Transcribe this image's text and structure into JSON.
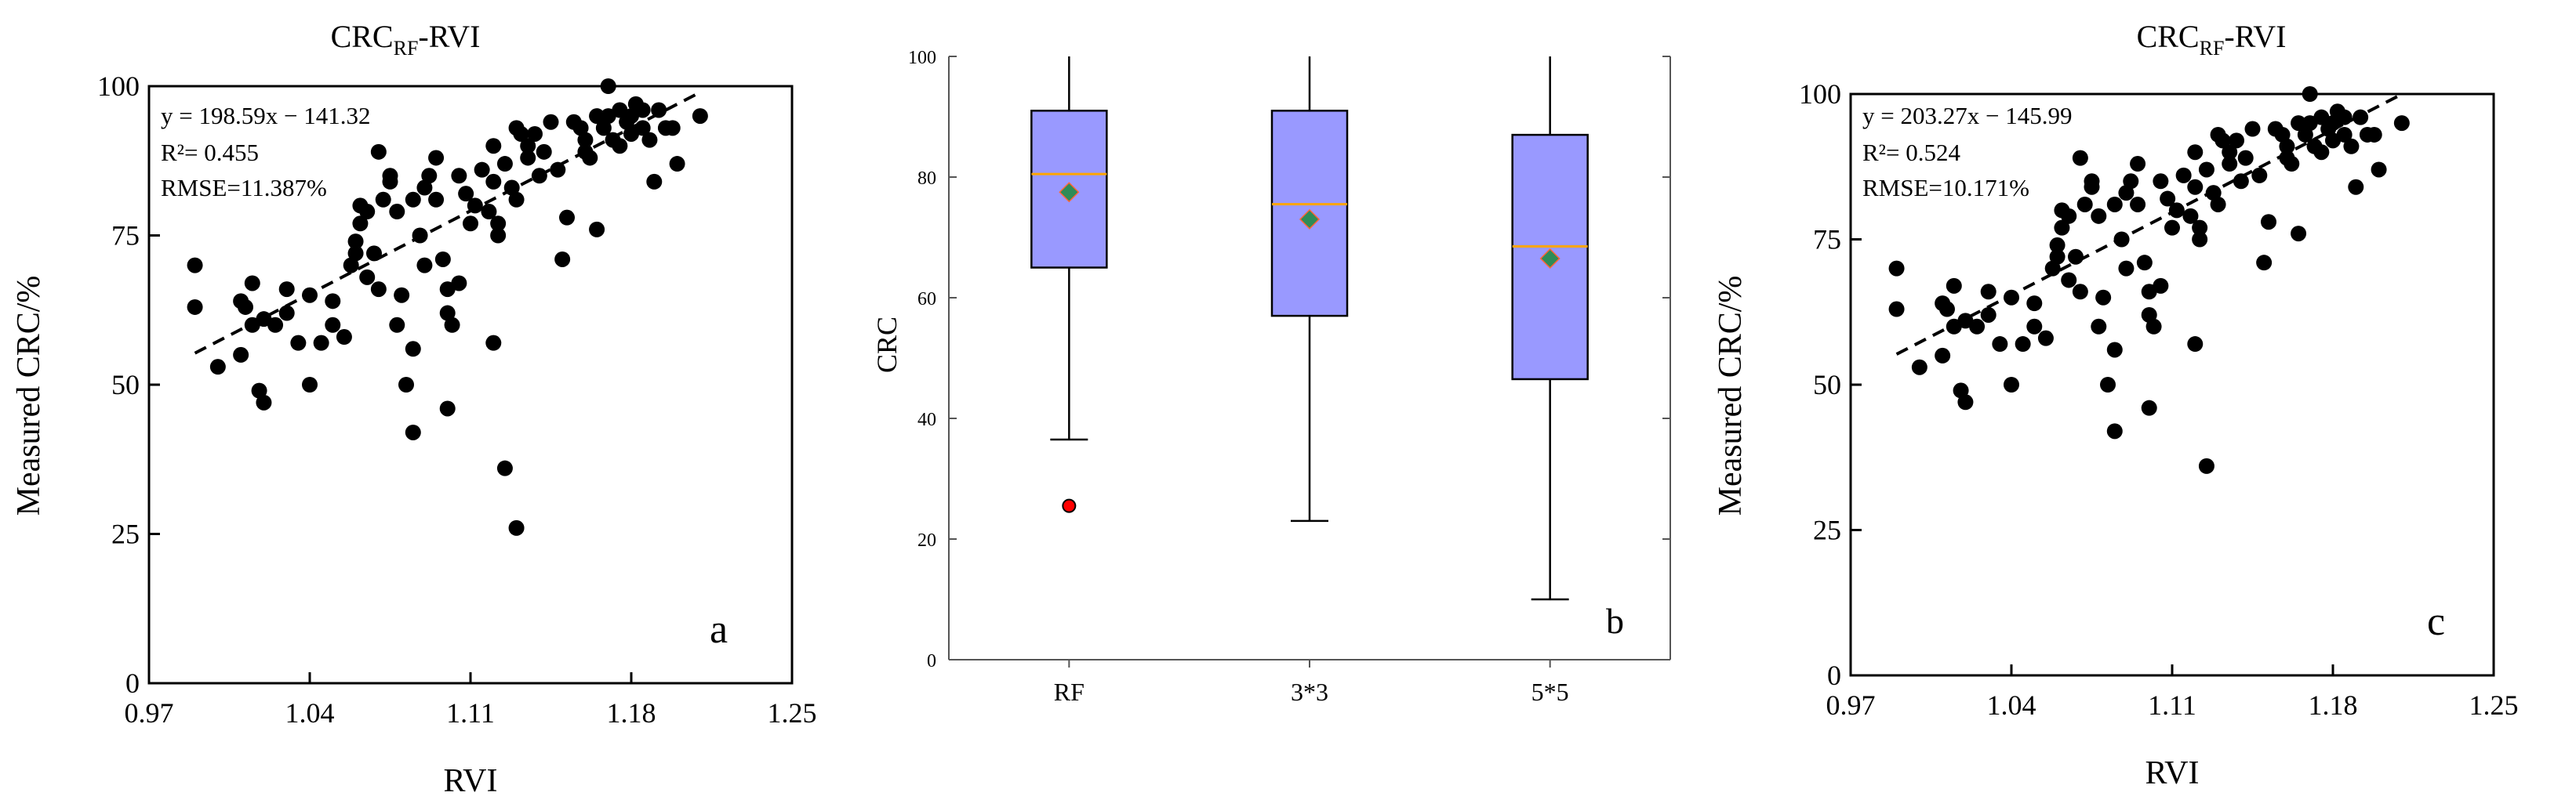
{
  "chart_data": [
    {
      "type": "scatter",
      "panel": "a",
      "title": "CRC",
      "title_sub": "RF",
      "title_tail": "-RVI",
      "xlabel": "RVI",
      "ylabel": "Measured CRC/%",
      "xlim": [
        0.97,
        1.25
      ],
      "ylim": [
        0,
        100
      ],
      "xticks": [
        "0.97",
        "1.04",
        "1.11",
        "1.18",
        "1.25"
      ],
      "yticks": [
        "0",
        "25",
        "50",
        "75",
        "100"
      ],
      "grid": false,
      "equation": "y  = 198.59x − 141.32",
      "r2_label": "R²= 0.455",
      "rmse_label": "RMSE=11.387%",
      "fit": {
        "slope": 198.59,
        "intercept": -141.32,
        "x_range": [
          0.99,
          1.21
        ]
      },
      "points": [
        [
          0.99,
          70
        ],
        [
          0.99,
          63
        ],
        [
          1.0,
          53
        ],
        [
          1.01,
          55
        ],
        [
          1.01,
          64
        ],
        [
          1.012,
          63
        ],
        [
          1.015,
          67
        ],
        [
          1.015,
          60
        ],
        [
          1.018,
          49
        ],
        [
          1.02,
          47
        ],
        [
          1.02,
          61
        ],
        [
          1.025,
          60
        ],
        [
          1.03,
          66
        ],
        [
          1.03,
          62
        ],
        [
          1.035,
          57
        ],
        [
          1.04,
          65
        ],
        [
          1.04,
          50
        ],
        [
          1.045,
          57
        ],
        [
          1.05,
          60
        ],
        [
          1.05,
          64
        ],
        [
          1.055,
          58
        ],
        [
          1.058,
          70
        ],
        [
          1.06,
          74
        ],
        [
          1.062,
          77
        ],
        [
          1.062,
          80
        ],
        [
          1.065,
          79
        ],
        [
          1.068,
          72
        ],
        [
          1.07,
          66
        ],
        [
          1.072,
          81
        ],
        [
          1.075,
          84
        ],
        [
          1.075,
          85
        ],
        [
          1.078,
          79
        ],
        [
          1.078,
          60
        ],
        [
          1.08,
          65
        ],
        [
          1.082,
          50
        ],
        [
          1.085,
          56
        ],
        [
          1.085,
          42
        ],
        [
          1.088,
          75
        ],
        [
          1.09,
          83
        ],
        [
          1.092,
          85
        ],
        [
          1.095,
          81
        ],
        [
          1.095,
          88
        ],
        [
          1.098,
          71
        ],
        [
          1.1,
          66
        ],
        [
          1.1,
          62
        ],
        [
          1.1,
          46
        ],
        [
          1.102,
          60
        ],
        [
          1.105,
          85
        ],
        [
          1.108,
          82
        ],
        [
          1.11,
          77
        ],
        [
          1.112,
          80
        ],
        [
          1.115,
          86
        ],
        [
          1.118,
          79
        ],
        [
          1.12,
          84
        ],
        [
          1.12,
          90
        ],
        [
          1.122,
          75
        ],
        [
          1.122,
          77
        ],
        [
          1.125,
          87
        ],
        [
          1.128,
          83
        ],
        [
          1.13,
          81
        ],
        [
          1.13,
          93
        ],
        [
          1.132,
          92
        ],
        [
          1.135,
          90
        ],
        [
          1.135,
          88
        ],
        [
          1.138,
          92
        ],
        [
          1.14,
          85
        ],
        [
          1.142,
          89
        ],
        [
          1.145,
          94
        ],
        [
          1.148,
          86
        ],
        [
          1.15,
          71
        ],
        [
          1.152,
          78
        ],
        [
          1.155,
          94
        ],
        [
          1.158,
          93
        ],
        [
          1.16,
          89
        ],
        [
          1.16,
          91
        ],
        [
          1.162,
          88
        ],
        [
          1.165,
          95
        ],
        [
          1.165,
          76
        ],
        [
          1.168,
          93
        ],
        [
          1.17,
          100
        ],
        [
          1.17,
          95
        ],
        [
          1.172,
          91
        ],
        [
          1.175,
          90
        ],
        [
          1.175,
          96
        ],
        [
          1.178,
          94
        ],
        [
          1.18,
          95
        ],
        [
          1.18,
          92
        ],
        [
          1.182,
          97
        ],
        [
          1.185,
          93
        ],
        [
          1.185,
          96
        ],
        [
          1.188,
          91
        ],
        [
          1.19,
          84
        ],
        [
          1.192,
          96
        ],
        [
          1.195,
          93
        ],
        [
          1.198,
          93
        ],
        [
          1.2,
          87
        ],
        [
          1.21,
          95
        ],
        [
          1.12,
          57
        ],
        [
          1.125,
          36
        ],
        [
          1.13,
          26
        ],
        [
          1.105,
          67
        ],
        [
          1.09,
          70
        ],
        [
          1.07,
          89
        ],
        [
          1.065,
          68
        ],
        [
          1.085,
          81
        ],
        [
          1.06,
          72
        ]
      ]
    },
    {
      "type": "box",
      "panel": "b",
      "ylabel": "CRC",
      "categories": [
        "RF",
        "3*3",
        "5*5"
      ],
      "ylim": [
        0,
        100
      ],
      "yticks": [
        "0",
        "20",
        "40",
        "60",
        "80",
        "100"
      ],
      "box_color": "#9999ff",
      "median_color": "#ffa500",
      "mean_color": "#2e8b57",
      "outlier_color": "#ff0000",
      "boxes": [
        {
          "whisker_low": 36.5,
          "q1": 65,
          "median": 80.5,
          "q3": 91,
          "whisker_high": 100,
          "mean": 77.5,
          "outliers": [
            25.5
          ]
        },
        {
          "whisker_low": 23,
          "q1": 57,
          "median": 75.5,
          "q3": 91,
          "whisker_high": 100,
          "mean": 73,
          "outliers": []
        },
        {
          "whisker_low": 10,
          "q1": 46.5,
          "median": 68.5,
          "q3": 87,
          "whisker_high": 100,
          "mean": 66.5,
          "outliers": []
        }
      ]
    },
    {
      "type": "scatter",
      "panel": "c",
      "title": "CRC",
      "title_sub": "RF",
      "title_tail": "-RVI",
      "xlabel": "RVI",
      "ylabel": "Measured CRC/%",
      "xlim": [
        0.97,
        1.25
      ],
      "ylim": [
        0,
        100
      ],
      "xticks": [
        "0.97",
        "1.04",
        "1.11",
        "1.18",
        "1.25"
      ],
      "yticks": [
        "0",
        "25",
        "50",
        "75",
        "100"
      ],
      "grid": false,
      "equation": "y  = 203.27x − 145.99",
      "r2_label": "R²= 0.524",
      "rmse_label": "RMSE=10.171%",
      "fit": {
        "slope": 203.27,
        "intercept": -145.99,
        "x_range": [
          0.99,
          1.21
        ]
      },
      "points": [
        [
          0.99,
          70
        ],
        [
          0.99,
          63
        ],
        [
          1.0,
          53
        ],
        [
          1.01,
          55
        ],
        [
          1.01,
          64
        ],
        [
          1.012,
          63
        ],
        [
          1.015,
          67
        ],
        [
          1.015,
          60
        ],
        [
          1.018,
          49
        ],
        [
          1.02,
          47
        ],
        [
          1.02,
          61
        ],
        [
          1.025,
          60
        ],
        [
          1.03,
          66
        ],
        [
          1.03,
          62
        ],
        [
          1.035,
          57
        ],
        [
          1.04,
          65
        ],
        [
          1.04,
          50
        ],
        [
          1.045,
          57
        ],
        [
          1.05,
          60
        ],
        [
          1.05,
          64
        ],
        [
          1.055,
          58
        ],
        [
          1.058,
          70
        ],
        [
          1.06,
          74
        ],
        [
          1.062,
          77
        ],
        [
          1.062,
          80
        ],
        [
          1.065,
          79
        ],
        [
          1.068,
          72
        ],
        [
          1.07,
          66
        ],
        [
          1.072,
          81
        ],
        [
          1.075,
          84
        ],
        [
          1.075,
          85
        ],
        [
          1.078,
          79
        ],
        [
          1.078,
          60
        ],
        [
          1.08,
          65
        ],
        [
          1.082,
          50
        ],
        [
          1.085,
          56
        ],
        [
          1.085,
          42
        ],
        [
          1.088,
          75
        ],
        [
          1.09,
          83
        ],
        [
          1.092,
          85
        ],
        [
          1.095,
          81
        ],
        [
          1.095,
          88
        ],
        [
          1.098,
          71
        ],
        [
          1.1,
          66
        ],
        [
          1.1,
          62
        ],
        [
          1.1,
          46
        ],
        [
          1.102,
          60
        ],
        [
          1.105,
          85
        ],
        [
          1.108,
          82
        ],
        [
          1.11,
          77
        ],
        [
          1.112,
          80
        ],
        [
          1.115,
          86
        ],
        [
          1.118,
          79
        ],
        [
          1.12,
          84
        ],
        [
          1.12,
          90
        ],
        [
          1.122,
          75
        ],
        [
          1.122,
          77
        ],
        [
          1.125,
          87
        ],
        [
          1.128,
          83
        ],
        [
          1.13,
          81
        ],
        [
          1.13,
          93
        ],
        [
          1.132,
          92
        ],
        [
          1.135,
          90
        ],
        [
          1.135,
          88
        ],
        [
          1.138,
          92
        ],
        [
          1.14,
          85
        ],
        [
          1.142,
          89
        ],
        [
          1.145,
          94
        ],
        [
          1.148,
          86
        ],
        [
          1.15,
          71
        ],
        [
          1.152,
          78
        ],
        [
          1.155,
          94
        ],
        [
          1.158,
          93
        ],
        [
          1.16,
          89
        ],
        [
          1.16,
          91
        ],
        [
          1.162,
          88
        ],
        [
          1.165,
          95
        ],
        [
          1.165,
          76
        ],
        [
          1.168,
          93
        ],
        [
          1.17,
          100
        ],
        [
          1.17,
          95
        ],
        [
          1.172,
          91
        ],
        [
          1.175,
          90
        ],
        [
          1.175,
          96
        ],
        [
          1.178,
          94
        ],
        [
          1.18,
          95
        ],
        [
          1.18,
          92
        ],
        [
          1.182,
          97
        ],
        [
          1.185,
          93
        ],
        [
          1.185,
          96
        ],
        [
          1.188,
          91
        ],
        [
          1.19,
          84
        ],
        [
          1.192,
          96
        ],
        [
          1.195,
          93
        ],
        [
          1.198,
          93
        ],
        [
          1.2,
          87
        ],
        [
          1.21,
          95
        ],
        [
          1.12,
          57
        ],
        [
          1.125,
          36
        ],
        [
          1.09,
          70
        ],
        [
          1.07,
          89
        ],
        [
          1.065,
          68
        ],
        [
          1.085,
          81
        ],
        [
          1.06,
          72
        ],
        [
          1.105,
          67
        ]
      ]
    }
  ]
}
